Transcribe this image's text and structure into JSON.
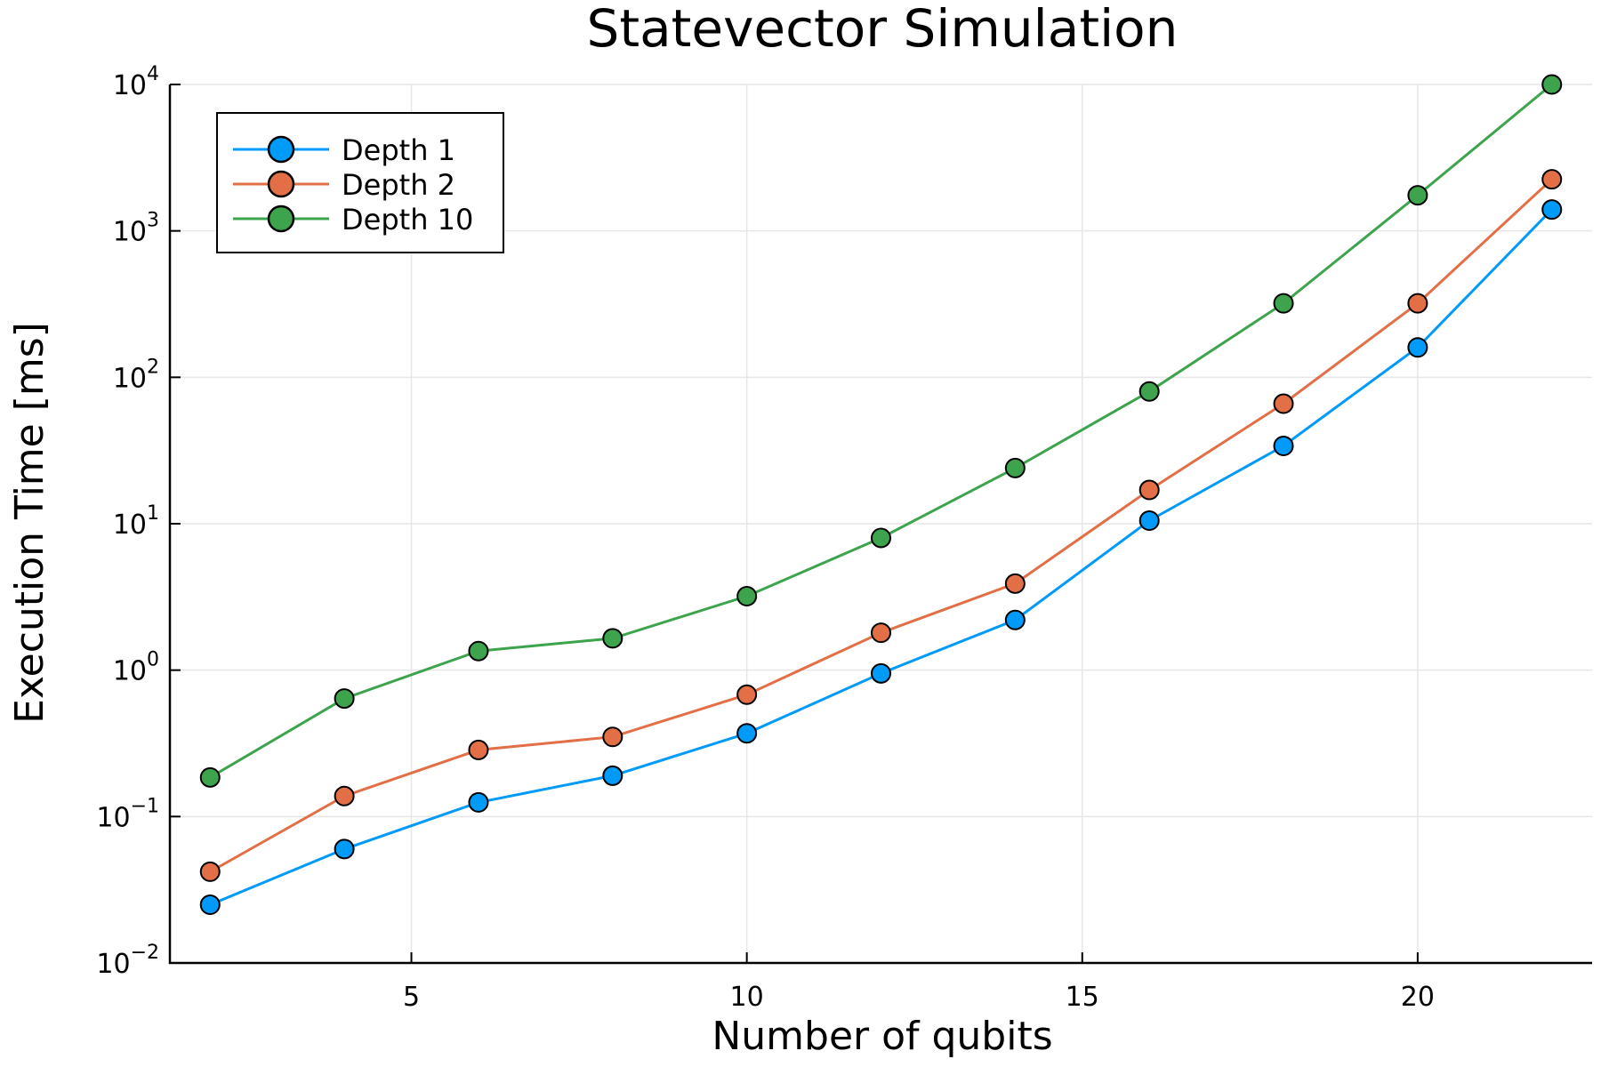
{
  "chart_data": {
    "type": "line",
    "title": "Statevector Simulation",
    "xlabel": "Number of qubits",
    "ylabel": "Execution Time [ms]",
    "yscale": "log",
    "xlim": [
      1.4,
      22.6
    ],
    "ylim": [
      0.01,
      10000
    ],
    "xticks": [
      5,
      10,
      15,
      20
    ],
    "xtick_labels": [
      "5",
      "10",
      "15",
      "20"
    ],
    "yticks": [
      0.01,
      0.1,
      1,
      10,
      100,
      1000,
      10000
    ],
    "ytick_labels": [
      {
        "base": "10",
        "exp": "−2"
      },
      {
        "base": "10",
        "exp": "−1"
      },
      {
        "base": "10",
        "exp": "0"
      },
      {
        "base": "10",
        "exp": "1"
      },
      {
        "base": "10",
        "exp": "2"
      },
      {
        "base": "10",
        "exp": "3"
      },
      {
        "base": "10",
        "exp": "4"
      }
    ],
    "grid": true,
    "legend_position": "top-left",
    "x": [
      2,
      4,
      6,
      8,
      10,
      12,
      14,
      16,
      18,
      20,
      22
    ],
    "series": [
      {
        "name": "Depth 1",
        "color": "#009af9",
        "values": [
          0.025,
          0.06,
          0.125,
          0.19,
          0.37,
          0.95,
          2.2,
          10.5,
          34,
          160,
          1400
        ]
      },
      {
        "name": "Depth 2",
        "color": "#e26f46",
        "values": [
          0.042,
          0.138,
          0.285,
          0.35,
          0.68,
          1.8,
          3.9,
          17,
          66,
          320,
          2250
        ]
      },
      {
        "name": "Depth 10",
        "color": "#3da44d",
        "values": [
          0.185,
          0.64,
          1.35,
          1.65,
          3.2,
          8,
          24,
          80,
          320,
          1750,
          10000
        ]
      }
    ]
  }
}
